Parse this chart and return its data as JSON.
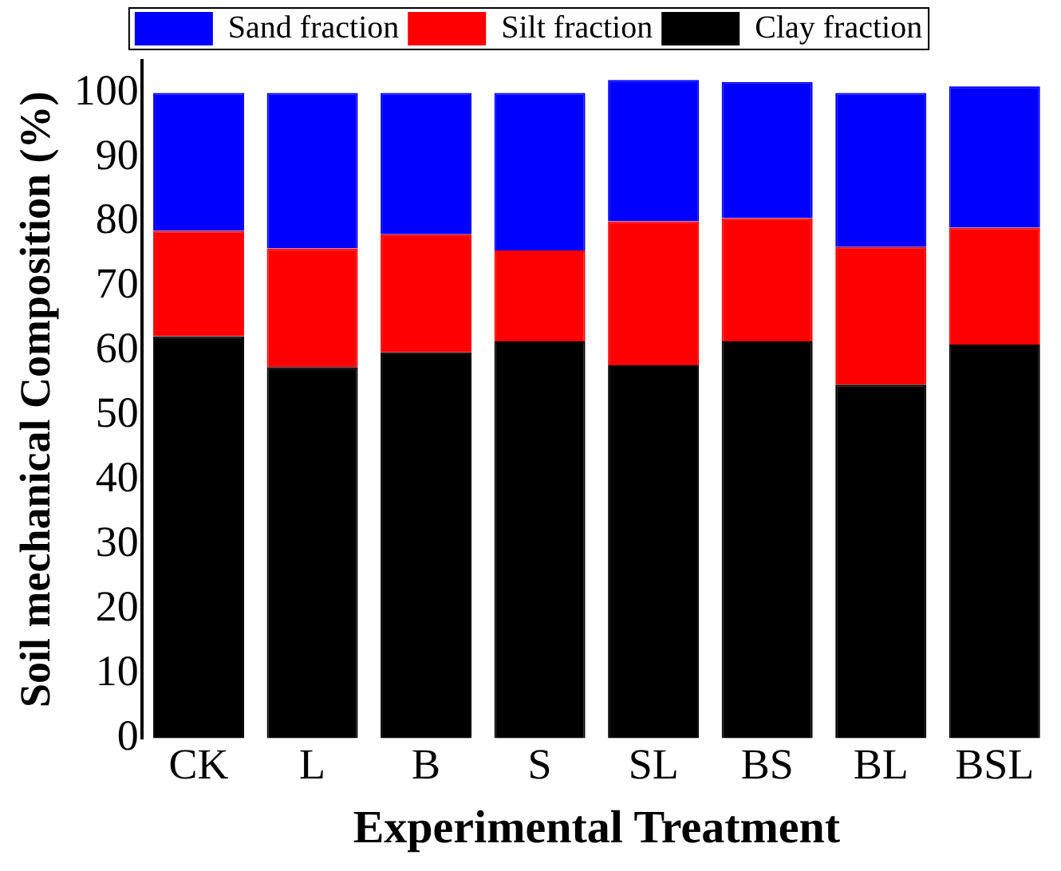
{
  "chart_data": {
    "type": "bar",
    "stacked": true,
    "xlabel": "Experimental Treatment",
    "ylabel": "Soil mechanical Composition (%)",
    "categories": [
      "CK",
      "L",
      "B",
      "S",
      "SL",
      "BS",
      "BL",
      "BSL"
    ],
    "series": [
      {
        "name": "Clay fraction",
        "color": "#000000",
        "values": [
          62.3,
          57.5,
          59.8,
          61.5,
          57.8,
          61.5,
          54.8,
          61.0
        ]
      },
      {
        "name": "Silt fraction",
        "color": "#ff0000",
        "values": [
          16.3,
          18.4,
          18.3,
          14.1,
          22.3,
          19.1,
          21.3,
          18.1
        ]
      },
      {
        "name": "Sand fraction",
        "color": "#0000ff",
        "values": [
          21.4,
          24.1,
          21.9,
          24.4,
          21.9,
          21.1,
          23.9,
          21.9
        ]
      }
    ],
    "ylim": [
      0,
      105
    ],
    "yticks": [
      0,
      10,
      20,
      30,
      40,
      50,
      60,
      70,
      80,
      90,
      100
    ],
    "grid": false,
    "legend": "top"
  }
}
